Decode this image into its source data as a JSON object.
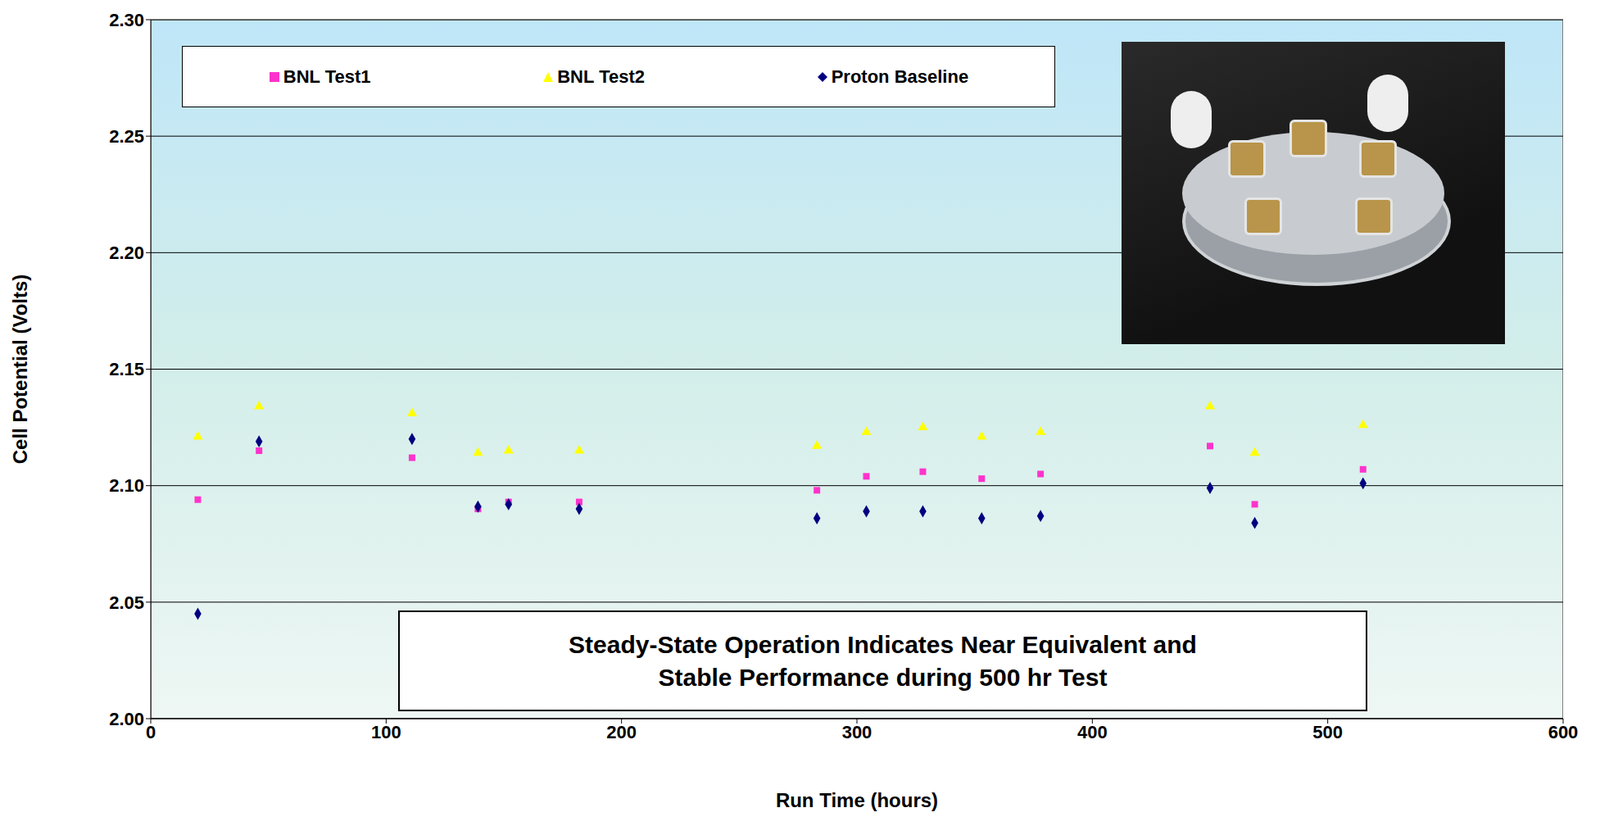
{
  "chart_data": {
    "type": "scatter",
    "x_label": "Run Time (hours)",
    "y_label": "Cell Potential (Volts)",
    "annotation": "Steady-State Operation Indicates Near Equivalent and\nStable Performance during 500 hr Test",
    "x": [
      20,
      46,
      111,
      139,
      152,
      182,
      283,
      304,
      328,
      353,
      378,
      450,
      469,
      515
    ],
    "series": [
      {
        "name": "BNL Test1",
        "color": "#ff33cc",
        "marker": "square",
        "values": [
          2.094,
          2.115,
          2.112,
          2.09,
          2.093,
          2.093,
          2.098,
          2.104,
          2.106,
          2.103,
          2.105,
          2.117,
          2.092,
          2.107
        ]
      },
      {
        "name": "BNL Test2",
        "color": "#ffff00",
        "marker": "triangle",
        "values": [
          2.121,
          2.134,
          2.131,
          2.114,
          2.115,
          2.115,
          2.117,
          2.123,
          2.125,
          2.121,
          2.123,
          2.134,
          2.114,
          2.126
        ]
      },
      {
        "name": "Proton Baseline",
        "color": "#000080",
        "marker": "diamond",
        "values": [
          2.045,
          2.119,
          2.12,
          2.091,
          2.092,
          2.09,
          2.086,
          2.089,
          2.089,
          2.086,
          2.087,
          2.099,
          2.084,
          2.101
        ]
      }
    ],
    "xlim": [
      0,
      600
    ],
    "xticks": [
      0,
      100,
      200,
      300,
      400,
      500,
      600
    ],
    "ylim": [
      2.0,
      2.3
    ],
    "yticks": [
      {
        "value": 2.0,
        "label": "2.00"
      },
      {
        "value": 2.05,
        "label": "2.05"
      },
      {
        "value": 2.1,
        "label": "2.10"
      },
      {
        "value": 2.15,
        "label": "2.15"
      },
      {
        "value": 2.2,
        "label": "2.20"
      },
      {
        "value": 2.25,
        "label": "2.25"
      },
      {
        "value": 2.3,
        "label": "2.30"
      }
    ],
    "grid": true,
    "legend": "top-left"
  }
}
